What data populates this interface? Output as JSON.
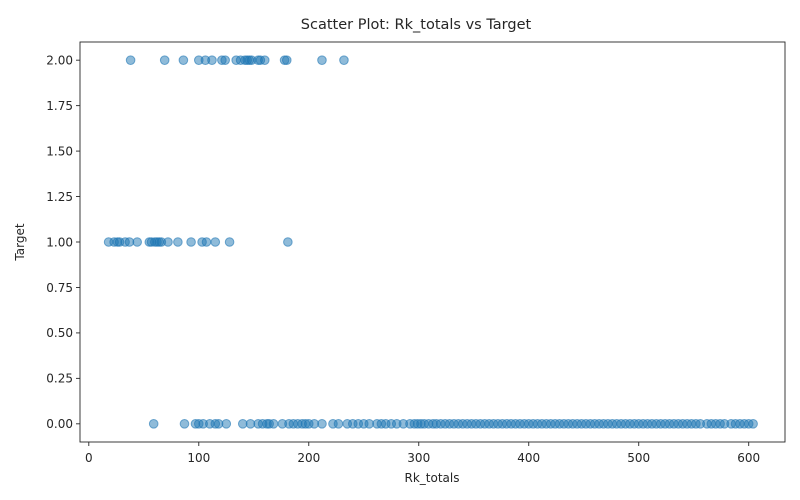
{
  "chart_data": {
    "type": "scatter",
    "title": "Scatter Plot: Rk_totals vs Target",
    "xlabel": "Rk_totals",
    "ylabel": "Target",
    "xlim": [
      -8,
      633
    ],
    "ylim": [
      -0.1,
      2.1
    ],
    "xticks": [
      0,
      100,
      200,
      300,
      400,
      500,
      600
    ],
    "xtick_labels": [
      "0",
      "100",
      "200",
      "300",
      "400",
      "500",
      "600"
    ],
    "yticks": [
      0,
      0.25,
      0.5,
      0.75,
      1.0,
      1.25,
      1.5,
      1.75,
      2.0
    ],
    "ytick_labels": [
      "0.00",
      "0.25",
      "0.50",
      "0.75",
      "1.00",
      "1.25",
      "1.50",
      "1.75",
      "2.00"
    ],
    "grid": false,
    "marker_color": "#1f77b4",
    "marker_alpha": 0.5,
    "series": [
      {
        "y": 2,
        "x": [
          38,
          69,
          86,
          100,
          106,
          112,
          121,
          124,
          134,
          138,
          142,
          144,
          146,
          148,
          154,
          156,
          160,
          178,
          180,
          212,
          232
        ]
      },
      {
        "y": 1,
        "x": [
          18,
          23,
          26,
          28,
          33,
          37,
          44,
          55,
          57,
          60,
          62,
          64,
          66,
          72,
          81,
          93,
          103,
          107,
          115,
          128,
          181
        ]
      },
      {
        "y": 0,
        "x": [
          59,
          87,
          97,
          100,
          104,
          110,
          115,
          118,
          125,
          140,
          147,
          154,
          158,
          162,
          164,
          168,
          176,
          182,
          186,
          190,
          194,
          197,
          200,
          205,
          212,
          222,
          227,
          235,
          240,
          245,
          250,
          255,
          262,
          266,
          270,
          275,
          280,
          286,
          292,
          296,
          299,
          302,
          305,
          309,
          313,
          316,
          320,
          324,
          328,
          332,
          336,
          340,
          344,
          348,
          352,
          356,
          360,
          364,
          368,
          372,
          376,
          380,
          384,
          388,
          392,
          396,
          400,
          404,
          408,
          412,
          416,
          420,
          424,
          428,
          432,
          436,
          440,
          444,
          448,
          452,
          456,
          460,
          464,
          468,
          472,
          476,
          480,
          484,
          488,
          492,
          496,
          500,
          504,
          508,
          512,
          516,
          520,
          524,
          528,
          532,
          536,
          540,
          544,
          548,
          552,
          556,
          562,
          566,
          570,
          574,
          578,
          584,
          588,
          592,
          596,
          600,
          604
        ]
      }
    ]
  }
}
